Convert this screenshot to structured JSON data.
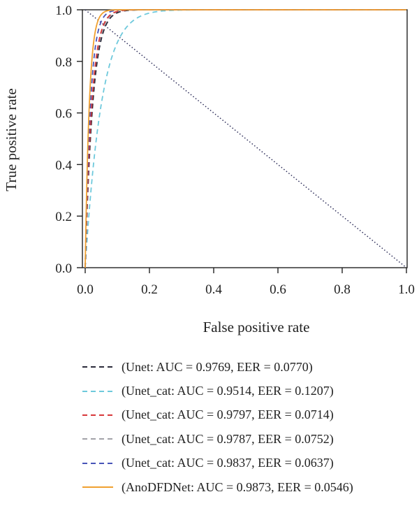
{
  "chart_data": {
    "type": "line",
    "xlabel": "False positive rate",
    "ylabel": "True positive rate",
    "xlim": [
      0,
      1
    ],
    "ylim": [
      0,
      1
    ],
    "x_ticks": [
      "0.0",
      "0.2",
      "0.4",
      "0.6",
      "0.8",
      "1.0"
    ],
    "y_ticks": [
      "0.0",
      "0.2",
      "0.4",
      "0.6",
      "0.8",
      "1.0"
    ],
    "grid": false,
    "legend_position": "bottom",
    "reference_line": {
      "style": "dotted",
      "color": "#2e2e5a",
      "from": [
        0,
        1
      ],
      "to": [
        1,
        0
      ]
    },
    "series": [
      {
        "name": "(Unet: AUC = 0.9769, EER = 0.0770)",
        "auc": 0.9769,
        "eer": 0.077,
        "color": "#2b2b3b",
        "dash": "dashed"
      },
      {
        "name": "(Unet_cat: AUC = 0.9514, EER = 0.1207)",
        "auc": 0.9514,
        "eer": 0.1207,
        "color": "#6ec9dc",
        "dash": "dashed"
      },
      {
        "name": "(Unet_cat: AUC = 0.9797, EER = 0.0714)",
        "auc": 0.9797,
        "eer": 0.0714,
        "color": "#d8373a",
        "dash": "dashed"
      },
      {
        "name": "(Unet_cat: AUC = 0.9787, EER = 0.0752)",
        "auc": 0.9787,
        "eer": 0.0752,
        "color": "#a3a3a9",
        "dash": "dashed"
      },
      {
        "name": "(Unet_cat: AUC = 0.9837, EER = 0.0637)",
        "auc": 0.9837,
        "eer": 0.0637,
        "color": "#4754b8",
        "dash": "dashed"
      },
      {
        "name": "(AnoDFDNet: AUC = 0.9873, EER = 0.0546)",
        "auc": 0.9873,
        "eer": 0.0546,
        "color": "#f0a030",
        "dash": "solid"
      }
    ]
  }
}
